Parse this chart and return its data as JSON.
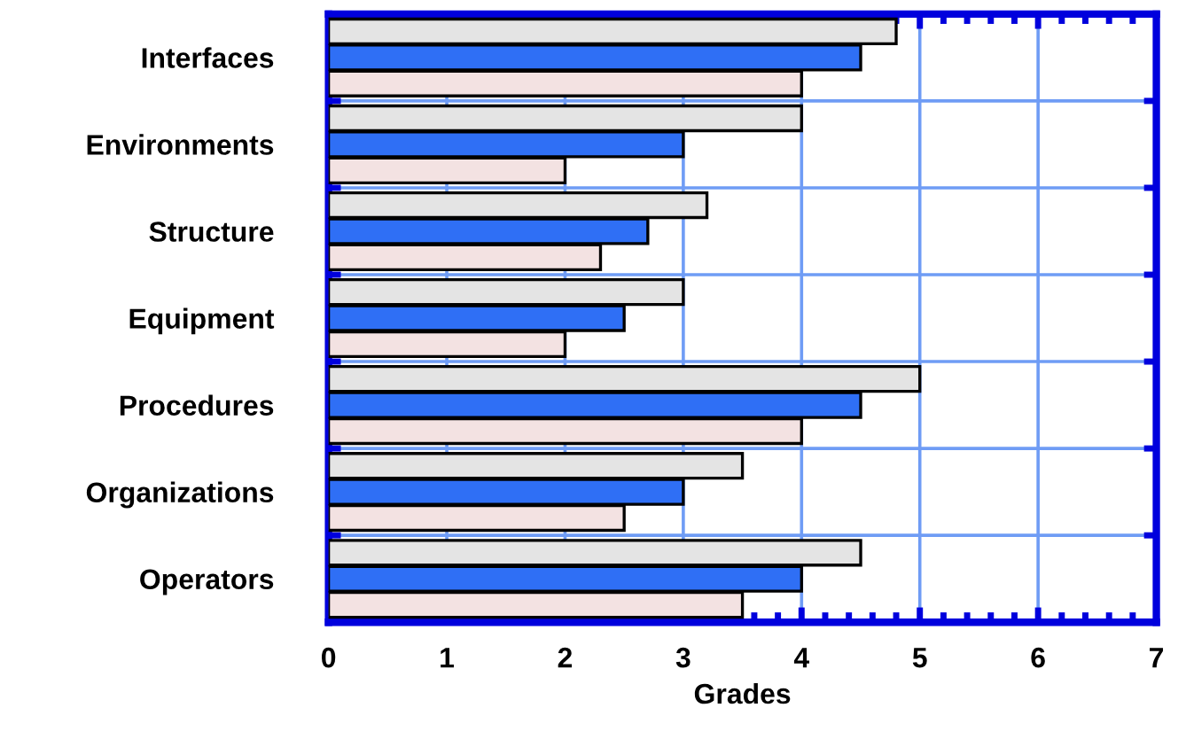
{
  "chart_data": {
    "type": "bar",
    "orientation": "horizontal",
    "xlabel": "Grades",
    "categories": [
      "Interfaces",
      "Environments",
      "Structure",
      "Equipment",
      "Procedures",
      "Organizations",
      "Operators"
    ],
    "series": [
      {
        "color": "#e4e4e4",
        "values": [
          4.8,
          4.0,
          3.2,
          3.0,
          5.0,
          3.5,
          4.5
        ]
      },
      {
        "color": "#2f6ff5",
        "values": [
          4.5,
          3.0,
          2.7,
          2.5,
          4.5,
          3.0,
          4.0
        ]
      },
      {
        "color": "#f3e2e2",
        "values": [
          4.0,
          2.0,
          2.3,
          2.0,
          4.0,
          2.5,
          3.5
        ]
      }
    ],
    "xlim": [
      0,
      7
    ],
    "xticks": [
      0,
      1,
      2,
      3,
      4,
      5,
      6,
      7
    ],
    "grid": true,
    "legend": false
  }
}
